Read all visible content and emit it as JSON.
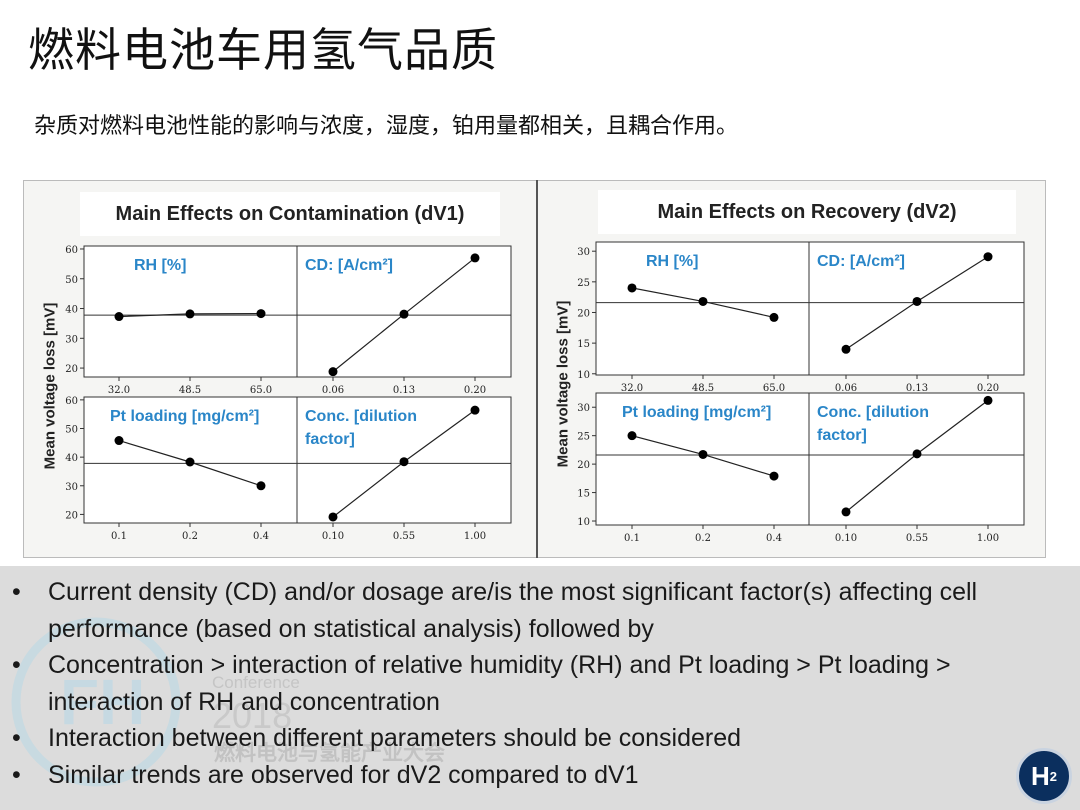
{
  "title": "燃料电池车用氢气品质",
  "subtitle": "杂质对燃料电池性能的影响与浓度，湿度，铂用量都相关，且耦合作用。",
  "colors": {
    "panel_label": "#2a86c8",
    "line": "#222222",
    "reference_line": "#333333"
  },
  "chart_data": [
    {
      "type": "line",
      "title": "Main Effects on Contamination (dV1)",
      "ylabel": "Mean voltage loss [mV]",
      "reference_mean": 37.8,
      "ylim_top": [
        17,
        61
      ],
      "ylim_bottom": [
        17,
        61
      ],
      "yticks": [
        20,
        30,
        40,
        50,
        60
      ],
      "panels": [
        {
          "label": "RH [%]",
          "categories": [
            "32.0",
            "48.5",
            "65.0"
          ],
          "values": [
            37.3,
            38.2,
            38.3
          ]
        },
        {
          "label": "CD: [A/cm²]",
          "categories": [
            "0.06",
            "0.13",
            "0.20"
          ],
          "values": [
            18.8,
            38.1,
            57.0
          ]
        },
        {
          "label": "Pt loading [mg/cm²]",
          "categories": [
            "0.1",
            "0.2",
            "0.4"
          ],
          "values": [
            45.8,
            38.3,
            30.0
          ]
        },
        {
          "label": "Conc. [dilution factor]",
          "categories": [
            "0.10",
            "0.55",
            "1.00"
          ],
          "values": [
            19.1,
            38.4,
            56.4
          ]
        }
      ]
    },
    {
      "type": "line",
      "title": "Main Effects on Recovery (dV2)",
      "ylabel": "Mean voltage loss [mV]",
      "reference_mean": 21.6,
      "ylim_top": [
        9.8,
        31.5
      ],
      "ylim_bottom": [
        9.3,
        32.5
      ],
      "yticks_top": [
        10,
        15,
        20,
        25,
        30
      ],
      "yticks_bottom": [
        10,
        15,
        20,
        25,
        30
      ],
      "panels": [
        {
          "label": "RH [%]",
          "categories": [
            "32.0",
            "48.5",
            "65.0"
          ],
          "values": [
            24.0,
            21.8,
            19.2
          ]
        },
        {
          "label": "CD: [A/cm²]",
          "categories": [
            "0.06",
            "0.13",
            "0.20"
          ],
          "values": [
            14.0,
            21.8,
            29.1
          ]
        },
        {
          "label": "Pt loading [mg/cm²]",
          "categories": [
            "0.1",
            "0.2",
            "0.4"
          ],
          "values": [
            25.0,
            21.7,
            17.9
          ]
        },
        {
          "label": "Conc. [dilution factor]",
          "categories": [
            "0.10",
            "0.55",
            "1.00"
          ],
          "values": [
            11.6,
            21.8,
            31.2
          ]
        }
      ]
    }
  ],
  "bullets": [
    "Current density (CD) and/or dosage are/is the most significant factor(s) affecting cell performance (based on statistical analysis) followed by",
    "Concentration > interaction of relative humidity (RH) and Pt loading > Pt loading > interaction of RH and concentration",
    "Interaction between different parameters should be considered",
    "Similar trends are observed for dV2 compared to dV1"
  ],
  "watermark": {
    "conference": "Conference",
    "year": "2018",
    "logo_text": "FH",
    "name": "燃料电池与氢能产业大会"
  },
  "logo": {
    "text": "H",
    "subscript": "2"
  }
}
